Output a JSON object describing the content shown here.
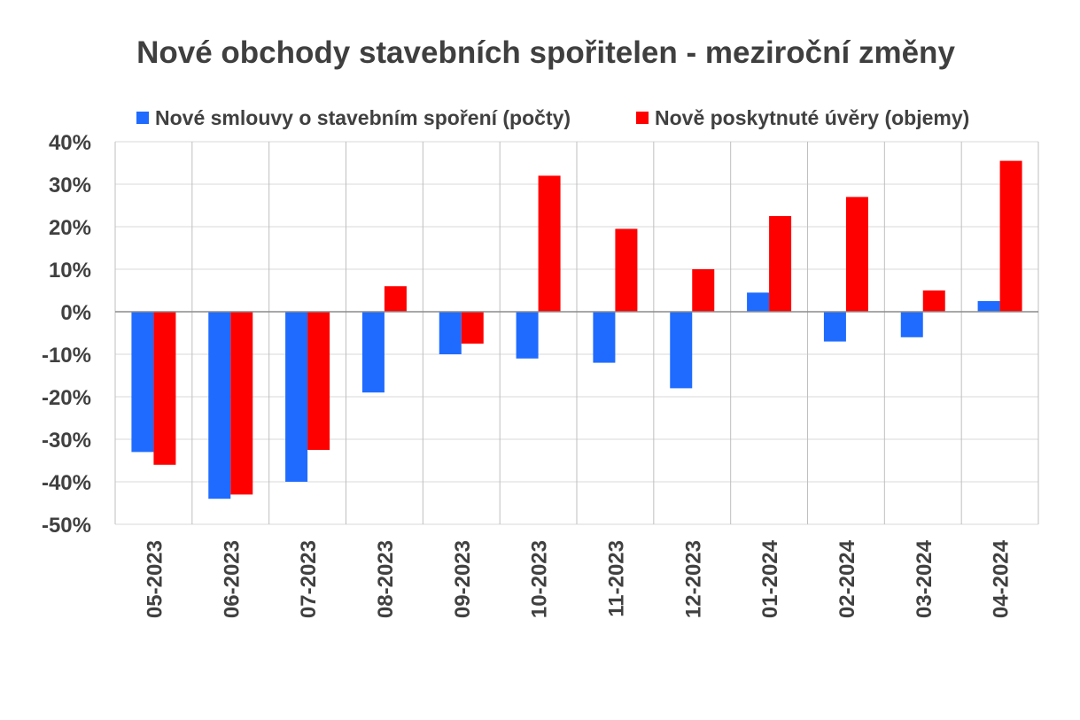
{
  "chart_data": {
    "type": "bar",
    "title": "Nové obchody stavebních spořitelen - meziroční změny",
    "categories": [
      "05-2023",
      "06-2023",
      "07-2023",
      "08-2023",
      "09-2023",
      "10-2023",
      "11-2023",
      "12-2023",
      "01-2024",
      "02-2024",
      "03-2024",
      "04-2024"
    ],
    "series": [
      {
        "name": "Nové smlouvy o stavebním spoření (počty)",
        "color": "#1f6bff",
        "values": [
          -33,
          -44,
          -40,
          -19,
          -10,
          -11,
          -12,
          -18,
          4.5,
          -7,
          -6,
          2.5
        ]
      },
      {
        "name": "Nově poskytnuté úvěry (objemy)",
        "color": "#ff0000",
        "values": [
          -36,
          -43,
          -32.5,
          6,
          -7.5,
          32,
          19.5,
          10,
          22.5,
          27,
          5,
          35.5
        ]
      }
    ],
    "yticks": [
      "40%",
      "30%",
      "20%",
      "10%",
      "0%",
      "-10%",
      "-20%",
      "-30%",
      "-40%",
      "-50%"
    ],
    "ylim": [
      -50,
      40
    ],
    "grid": true,
    "legend": "top"
  }
}
